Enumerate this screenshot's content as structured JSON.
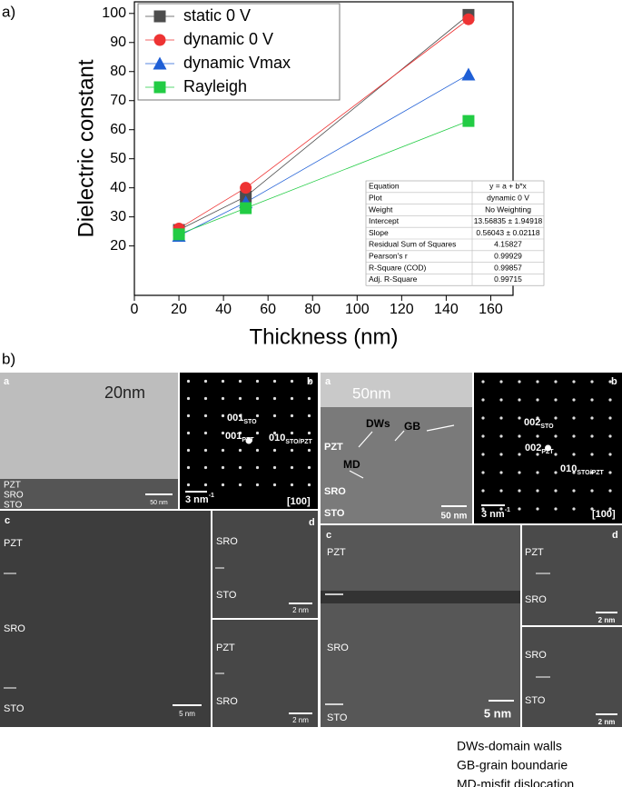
{
  "figure_labels": {
    "a": "a)",
    "b": "b)"
  },
  "chart_data": {
    "type": "line",
    "x_label": "Thickness (nm)",
    "y_label": "Dielectric constant",
    "x": [
      20,
      50,
      150
    ],
    "series": [
      {
        "name": "static 0 V",
        "color": "#4d4d4d",
        "marker": "square",
        "values": [
          25.5,
          37,
          99.5
        ]
      },
      {
        "name": "dynamic 0 V",
        "color": "#ee3333",
        "marker": "circle",
        "values": [
          26,
          40,
          98
        ]
      },
      {
        "name": "dynamic Vmax",
        "color": "#1f5fd6",
        "marker": "triangle",
        "values": [
          23.5,
          35,
          79
        ]
      },
      {
        "name": "Rayleigh",
        "color": "#22cc44",
        "marker": "square",
        "values": [
          24,
          33,
          63
        ]
      }
    ],
    "xlim": [
      0,
      170
    ],
    "xticks": [
      0,
      20,
      40,
      60,
      80,
      100,
      120,
      140,
      160
    ],
    "ylim": [
      3,
      104
    ],
    "yticks": [
      20,
      30,
      40,
      50,
      60,
      70,
      80,
      90,
      100
    ],
    "legend": "upper-left",
    "grid": false,
    "inset_table": {
      "rows": [
        [
          "Equation",
          "y = a + b*x"
        ],
        [
          "Plot",
          "dynamic 0 V"
        ],
        [
          "Weight",
          "No Weighting"
        ],
        [
          "Intercept",
          "13.56835 ± 1.94918"
        ],
        [
          "Slope",
          "0.56043 ± 0.02118"
        ],
        [
          "Residual Sum of Squares",
          "4.15827"
        ],
        [
          "Pearson's r",
          "0.99929"
        ],
        [
          "R-Square (COD)",
          "0.99857"
        ],
        [
          "Adj. R-Square",
          "0.99715"
        ]
      ]
    }
  },
  "micrographs": {
    "left": {
      "a": {
        "panel": "a",
        "title": "20nm",
        "layers": [
          "PZT",
          "SRO",
          "STO"
        ],
        "scale": "50 nm"
      },
      "b": {
        "panel": "b",
        "spots": [
          {
            "main": "001",
            "sub": "STO"
          },
          {
            "main": "001",
            "sub": "PZT"
          },
          {
            "main": "010",
            "sub": "STO/PZT"
          }
        ],
        "scale": {
          "main": "3 nm",
          "sup": "-1"
        },
        "zone": "[100]"
      },
      "c": {
        "panel": "c",
        "layers": [
          "PZT",
          "SRO",
          "STO"
        ],
        "scale": "5 nm"
      },
      "d": {
        "panel": "d",
        "top": [
          "SRO",
          "STO"
        ],
        "top_scale": "2 nm",
        "bottom": [
          "PZT",
          "SRO"
        ],
        "bottom_scale": "2 nm"
      }
    },
    "right": {
      "a": {
        "panel": "a",
        "title": "50nm",
        "annotations": [
          "DWs",
          "GB",
          "MD"
        ],
        "layers": [
          "PZT",
          "SRO",
          "STO"
        ],
        "scale": "50 nm"
      },
      "b": {
        "panel": "b",
        "spots": [
          {
            "main": "002",
            "sub": "STO"
          },
          {
            "main": "002",
            "sub": "PZT"
          },
          {
            "main": "010",
            "sub": "STO/PZT"
          }
        ],
        "scale": {
          "main": "3 nm",
          "sup": "-1"
        },
        "zone": "[100]"
      },
      "c": {
        "panel": "c",
        "layers": [
          "PZT",
          "SRO",
          "STO"
        ],
        "scale": "5 nm"
      },
      "d": {
        "panel": "d",
        "top": [
          "PZT",
          "SRO"
        ],
        "top_scale": "2 nm",
        "bottom": [
          "SRO",
          "STO"
        ],
        "bottom_scale": "2 nm"
      }
    }
  },
  "abbreviations": [
    "DWs-domain walls",
    "GB-grain boundarie",
    "MD-misfit dislocation"
  ]
}
